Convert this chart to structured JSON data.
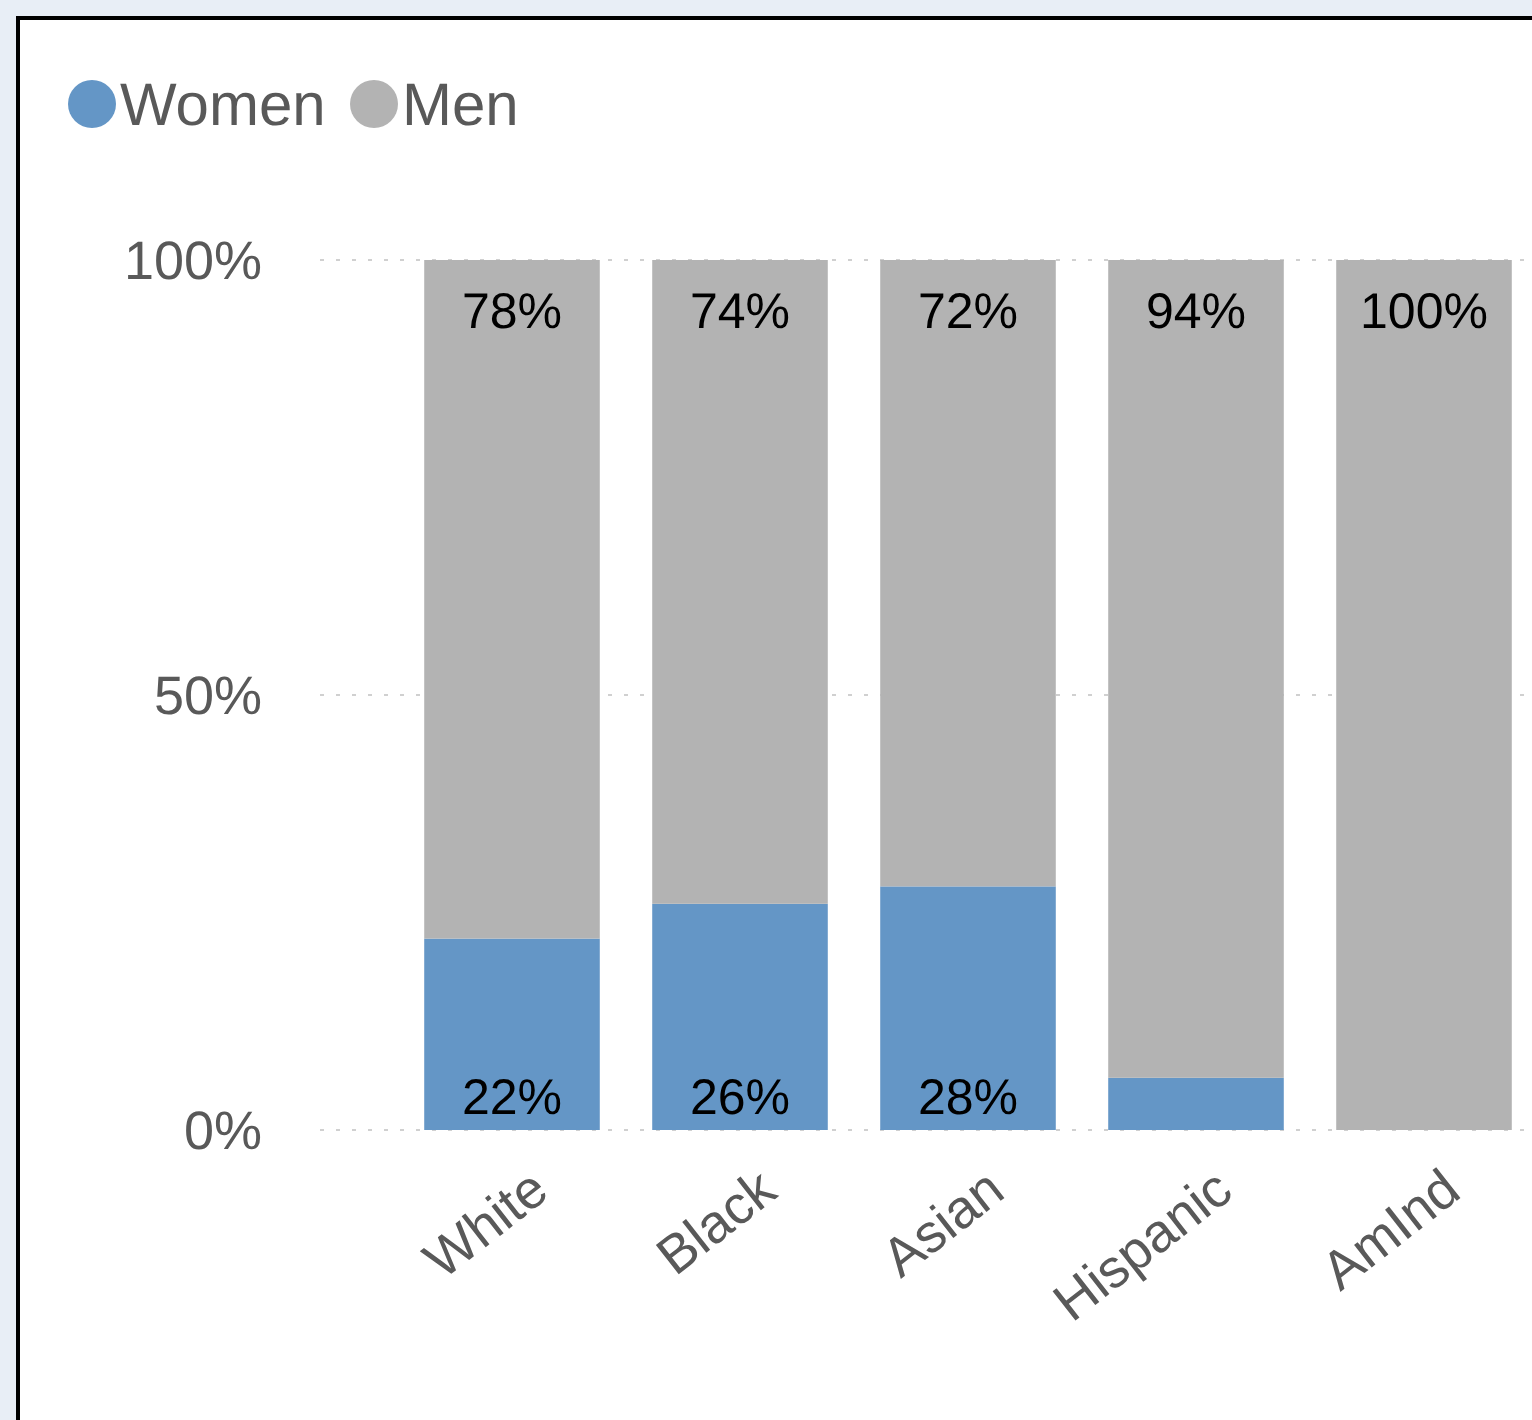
{
  "chart_data": {
    "type": "bar",
    "stacked": true,
    "categories": [
      "White",
      "Black",
      "Asian",
      "Hispanic",
      "AmInd"
    ],
    "series": [
      {
        "name": "Women",
        "color": "#6496c6",
        "values": [
          22,
          26,
          28,
          6,
          0
        ],
        "value_labels": [
          "22%",
          "26%",
          "28%",
          null,
          null
        ]
      },
      {
        "name": "Men",
        "color": "#b3b3b3",
        "values": [
          78,
          74,
          72,
          94,
          100
        ],
        "value_labels": [
          "78%",
          "74%",
          "72%",
          "94%",
          "100%"
        ]
      }
    ],
    "ylim": [
      0,
      100
    ],
    "yticks": [
      {
        "value": 0,
        "label": "0%"
      },
      {
        "value": 50,
        "label": "50%"
      },
      {
        "value": 100,
        "label": "100%"
      }
    ],
    "grid": "y",
    "legend": "top left"
  }
}
